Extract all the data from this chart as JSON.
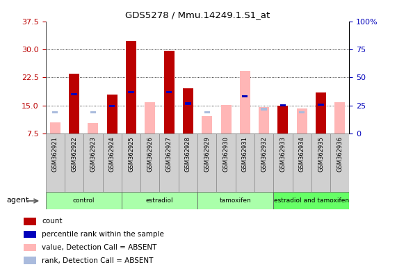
{
  "title": "GDS5278 / Mmu.14249.1.S1_at",
  "samples": [
    "GSM362921",
    "GSM362922",
    "GSM362923",
    "GSM362924",
    "GSM362925",
    "GSM362926",
    "GSM362927",
    "GSM362928",
    "GSM362929",
    "GSM362930",
    "GSM362931",
    "GSM362932",
    "GSM362933",
    "GSM362934",
    "GSM362935",
    "GSM362936"
  ],
  "count_values": [
    null,
    23.5,
    null,
    18.0,
    32.2,
    null,
    29.7,
    19.5,
    null,
    null,
    null,
    null,
    15.0,
    null,
    18.5,
    null
  ],
  "count_absent_values": [
    10.5,
    null,
    10.3,
    null,
    null,
    15.8,
    null,
    null,
    12.2,
    15.2,
    24.2,
    14.5,
    null,
    14.2,
    null,
    15.8
  ],
  "rank_values": [
    null,
    18.0,
    null,
    14.8,
    18.5,
    null,
    18.5,
    15.5,
    null,
    null,
    17.5,
    null,
    15.0,
    null,
    15.2,
    null
  ],
  "rank_absent_values": [
    13.2,
    null,
    13.2,
    null,
    null,
    null,
    null,
    null,
    13.2,
    null,
    null,
    14.0,
    null,
    13.2,
    null,
    null
  ],
  "ylim_left": [
    7.5,
    37.5
  ],
  "ylim_right": [
    0,
    100
  ],
  "yticks_left": [
    7.5,
    15.0,
    22.5,
    30.0,
    37.5
  ],
  "yticks_right": [
    0,
    25,
    50,
    75,
    100
  ],
  "group_labels": [
    "control",
    "estradiol",
    "tamoxifen",
    "estradiol and tamoxifen"
  ],
  "group_ranges": [
    [
      0,
      3
    ],
    [
      4,
      7
    ],
    [
      8,
      11
    ],
    [
      12,
      15
    ]
  ],
  "group_colors": [
    "#aaffaa",
    "#aaffaa",
    "#aaffaa",
    "#66ff66"
  ],
  "count_color": "#BB0000",
  "rank_color": "#0000BB",
  "count_absent_color": "#FFB6B6",
  "rank_absent_color": "#AABBDD",
  "agent_label": "agent",
  "legend_items": [
    {
      "label": "count",
      "color": "#BB0000"
    },
    {
      "label": "percentile rank within the sample",
      "color": "#0000BB"
    },
    {
      "label": "value, Detection Call = ABSENT",
      "color": "#FFB6B6"
    },
    {
      "label": "rank, Detection Call = ABSENT",
      "color": "#AABBDD"
    }
  ]
}
